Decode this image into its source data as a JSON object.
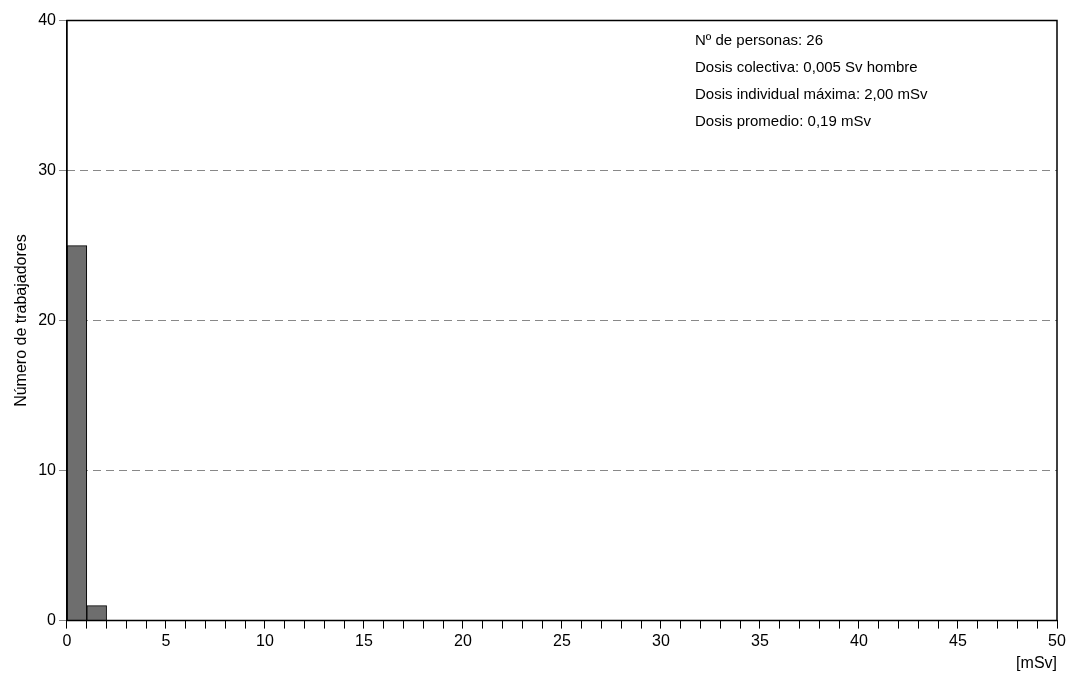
{
  "chart_data": {
    "type": "histogram",
    "xlabel": "[mSv]",
    "ylabel": "Número de trabajadores",
    "bins": [
      0,
      1,
      2,
      3,
      4,
      5,
      6,
      7,
      8,
      9,
      10,
      11,
      12,
      13,
      14,
      15,
      16,
      17,
      18,
      19,
      20,
      21,
      22,
      23,
      24,
      25,
      26,
      27,
      28,
      29,
      30,
      31,
      32,
      33,
      34,
      35,
      36,
      37,
      38,
      39,
      40,
      41,
      42,
      43,
      44,
      45,
      46,
      47,
      48,
      49,
      50
    ],
    "values": [
      25,
      1,
      0,
      0,
      0,
      0,
      0,
      0,
      0,
      0,
      0,
      0,
      0,
      0,
      0,
      0,
      0,
      0,
      0,
      0,
      0,
      0,
      0,
      0,
      0,
      0,
      0,
      0,
      0,
      0,
      0,
      0,
      0,
      0,
      0,
      0,
      0,
      0,
      0,
      0,
      0,
      0,
      0,
      0,
      0,
      0,
      0,
      0,
      0,
      0
    ],
    "color": "#6e6e6e",
    "xlim": [
      0,
      50
    ],
    "xticks": [
      0,
      {
        "value": 1,
        "label": null
      },
      {
        "value": 2,
        "label": null
      },
      {
        "value": 3,
        "label": null
      },
      {
        "value": 4,
        "label": null
      },
      5,
      {
        "value": 6,
        "label": null
      },
      {
        "value": 7,
        "label": null
      },
      {
        "value": 8,
        "label": null
      },
      {
        "value": 9,
        "label": null
      },
      10,
      {
        "value": 11,
        "label": null
      },
      {
        "value": 12,
        "label": null
      },
      {
        "value": 13,
        "label": null
      },
      {
        "value": 14,
        "label": null
      },
      15,
      {
        "value": 16,
        "label": null
      },
      {
        "value": 17,
        "label": null
      },
      {
        "value": 18,
        "label": null
      },
      {
        "value": 19,
        "label": null
      },
      20,
      {
        "value": 21,
        "label": null
      },
      {
        "value": 22,
        "label": null
      },
      {
        "value": 23,
        "label": null
      },
      {
        "value": 24,
        "label": null
      },
      25,
      {
        "value": 26,
        "label": null
      },
      {
        "value": 27,
        "label": null
      },
      {
        "value": 28,
        "label": null
      },
      {
        "value": 29,
        "label": null
      },
      30,
      {
        "value": 31,
        "label": null
      },
      {
        "value": 32,
        "label": null
      },
      {
        "value": 33,
        "label": null
      },
      {
        "value": 34,
        "label": null
      },
      35,
      {
        "value": 36,
        "label": null
      },
      {
        "value": 37,
        "label": null
      },
      {
        "value": 38,
        "label": null
      },
      {
        "value": 39,
        "label": null
      },
      40,
      {
        "value": 41,
        "label": null
      },
      {
        "value": 42,
        "label": null
      },
      {
        "value": 43,
        "label": null
      },
      {
        "value": 44,
        "label": null
      },
      45,
      {
        "value": 46,
        "label": null
      },
      {
        "value": 47,
        "label": null
      },
      {
        "value": 48,
        "label": null
      },
      {
        "value": 49,
        "label": null
      },
      50
    ],
    "ylim": [
      0,
      40
    ],
    "yticks": [
      0,
      10,
      20,
      30,
      40
    ],
    "grid": "y",
    "annotations": [
      "Nº de personas: 26",
      "Dosis colectiva: 0,005 Sv hombre",
      "Dosis individual máxima: 2,00 mSv",
      "Dosis promedio: 0,19 mSv"
    ]
  }
}
